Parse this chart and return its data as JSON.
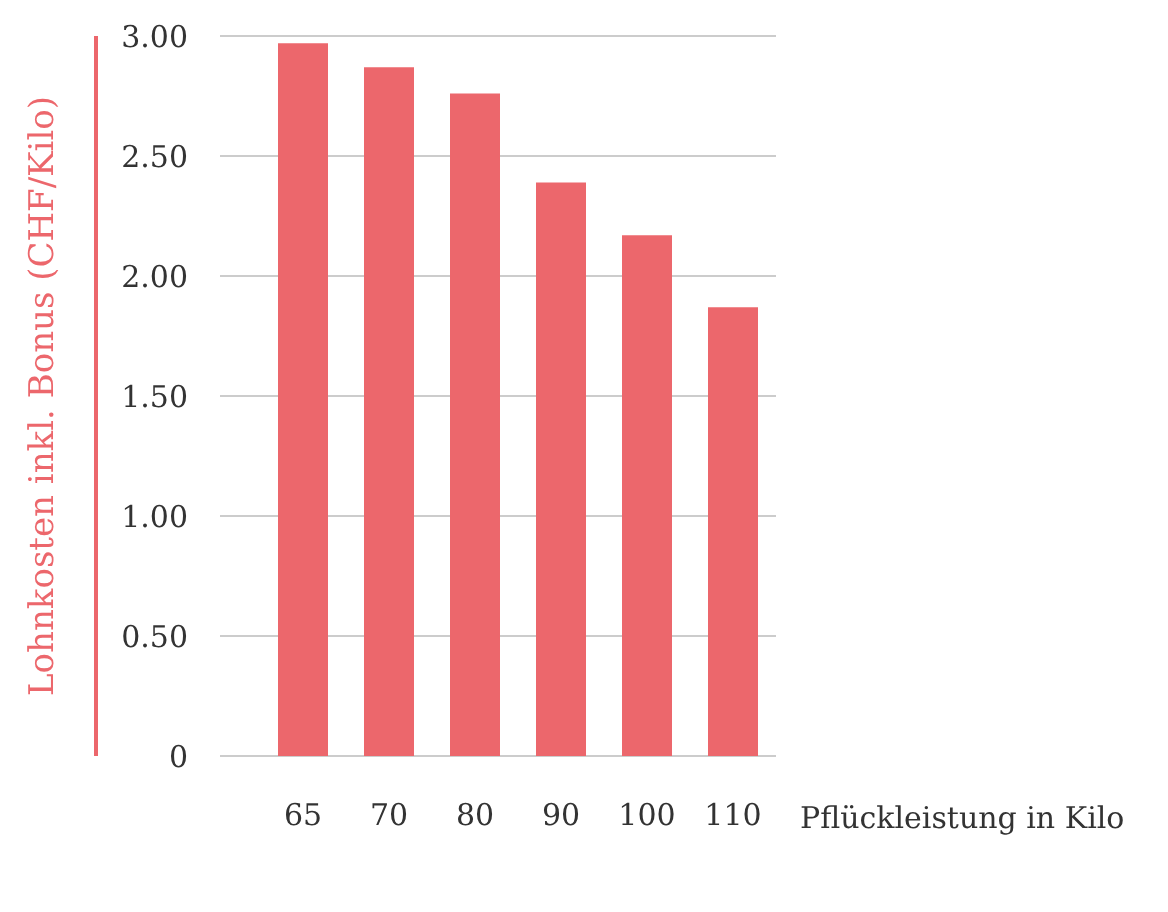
{
  "chart_data": {
    "type": "bar",
    "ylabel": "Lohnkosten inkl. Bonus (CHF/Kilo)",
    "xlabel": "Pflückleistung in Kilo",
    "categories": [
      "65",
      "70",
      "80",
      "90",
      "100",
      "110"
    ],
    "values": [
      2.97,
      2.87,
      2.76,
      2.39,
      2.17,
      1.87
    ],
    "color": "#ec676c",
    "ylim": [
      0,
      3
    ],
    "yticks": [
      {
        "value": 0,
        "label": "0"
      },
      {
        "value": 0.5,
        "label": "0.50"
      },
      {
        "value": 1,
        "label": "1.00"
      },
      {
        "value": 1.5,
        "label": "1.50"
      },
      {
        "value": 2,
        "label": "2.00"
      },
      {
        "value": 2.5,
        "label": "2.50"
      },
      {
        "value": 3,
        "label": "3.00"
      }
    ],
    "grid": "y"
  }
}
